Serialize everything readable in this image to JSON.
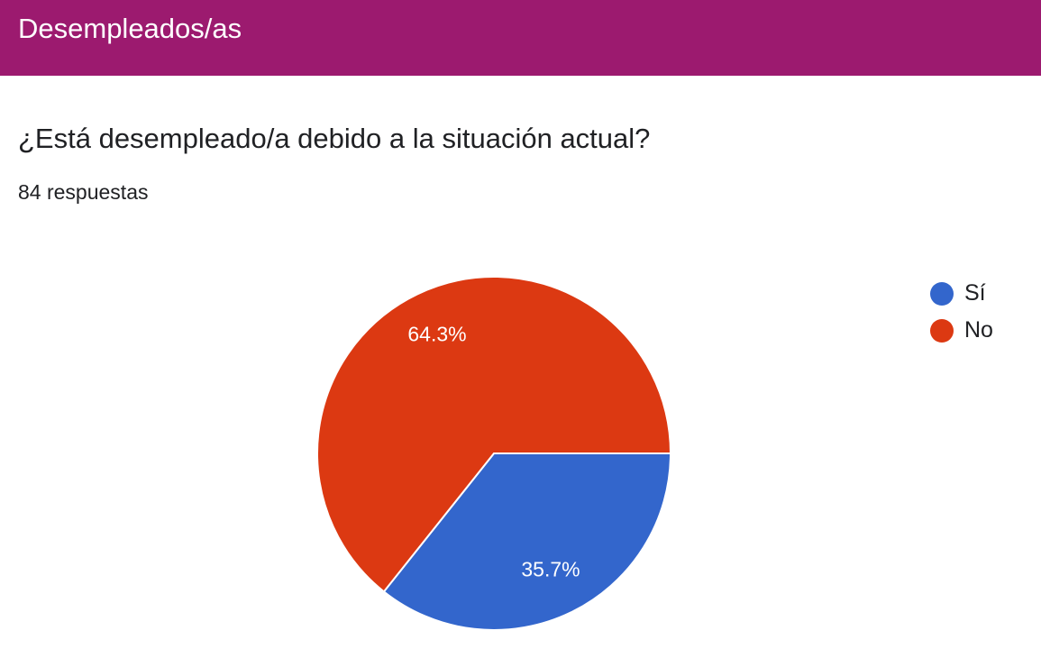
{
  "header": {
    "title": "Desempleados/as"
  },
  "question": {
    "title": "¿Está desempleado/a debido a la situación actual?",
    "responses": "84 respuestas"
  },
  "chart_data": {
    "type": "pie",
    "title": "",
    "slices": [
      {
        "label": "Sí",
        "value": 35.7,
        "display": "35.7%",
        "color": "#3366cc"
      },
      {
        "label": "No",
        "value": 64.3,
        "display": "64.3%",
        "color": "#dc3912"
      }
    ],
    "legend_position": "right"
  }
}
